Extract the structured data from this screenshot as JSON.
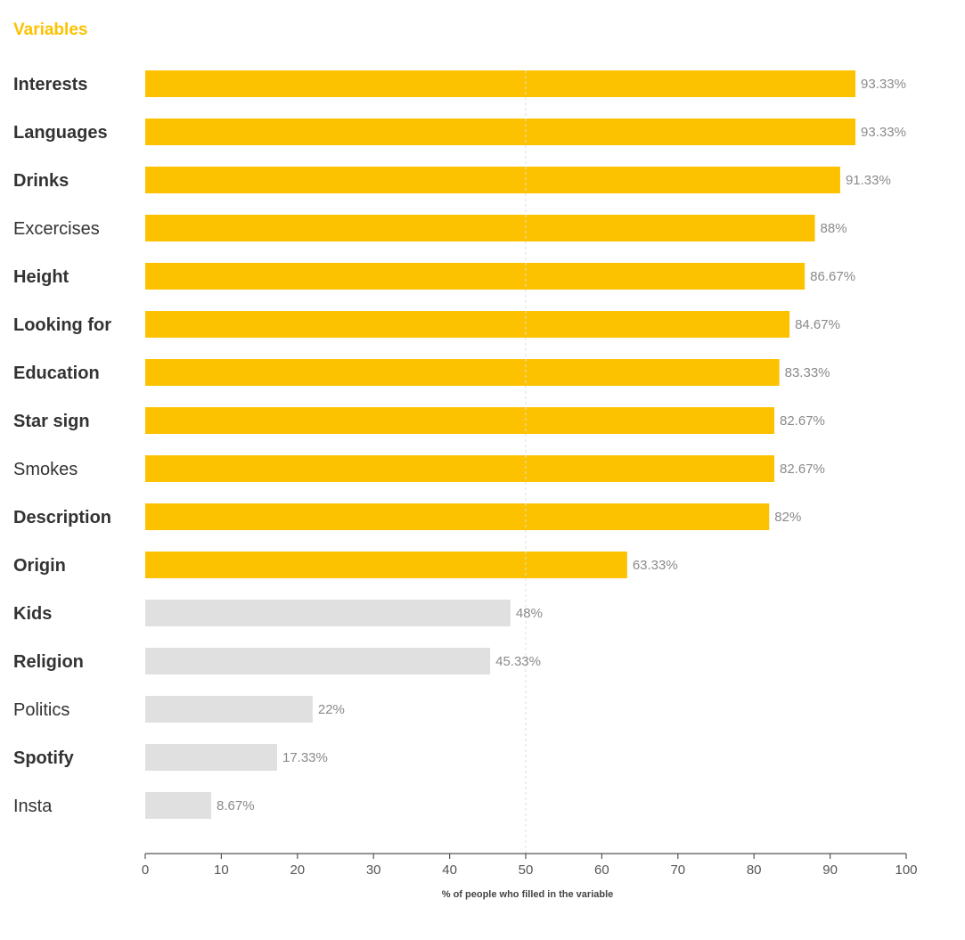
{
  "chart_data": {
    "type": "bar",
    "orientation": "horizontal",
    "title": "Variables",
    "xlabel": "% of people who filled in the variable",
    "xlim": [
      0,
      100
    ],
    "xticks": [
      0,
      10,
      20,
      30,
      40,
      50,
      60,
      70,
      80,
      90,
      100
    ],
    "reference_line": 50,
    "categories": [
      "Interests",
      "Languages",
      "Drinks",
      "Excercises",
      "Height",
      "Looking for",
      "Education",
      "Star sign",
      "Smokes",
      "Description",
      "Origin",
      "Kids",
      "Religion",
      "Politics",
      "Spotify",
      "Insta"
    ],
    "values": [
      93.33,
      93.33,
      91.33,
      88,
      86.67,
      84.67,
      83.33,
      82.67,
      82.67,
      82,
      63.33,
      48,
      45.33,
      22,
      17.33,
      8.67
    ],
    "value_labels": [
      "93.33%",
      "93.33%",
      "91.33%",
      "88%",
      "86.67%",
      "84.67%",
      "83.33%",
      "82.67%",
      "82.67%",
      "82%",
      "63.33%",
      "48%",
      "45.33%",
      "22%",
      "17.33%",
      "8.67%"
    ],
    "bold_labels": [
      true,
      true,
      true,
      false,
      true,
      true,
      true,
      true,
      false,
      true,
      true,
      true,
      true,
      false,
      true,
      false
    ],
    "colors": {
      "above": "#fcc200",
      "below": "#e0e0e0",
      "reference_line": "#dddddd",
      "axis": "#555555",
      "title": "#fcc200"
    }
  }
}
